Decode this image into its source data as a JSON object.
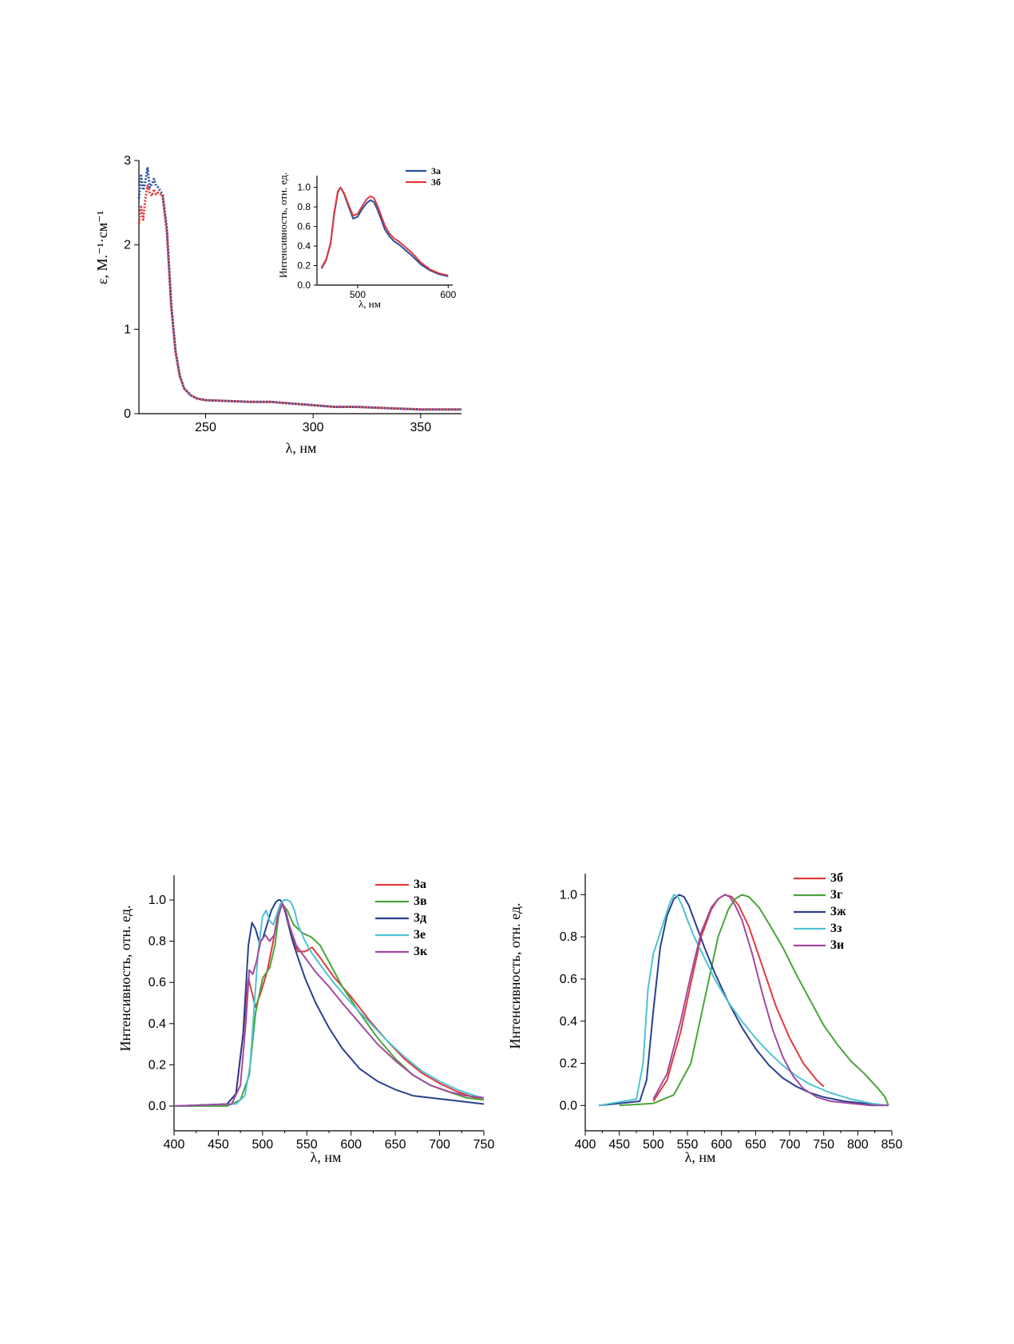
{
  "chart_data": [
    {
      "id": "absorption",
      "type": "line",
      "xlabel": "λ, нм",
      "ylabel": "ε, М.⁻¹·см⁻¹",
      "xlim": [
        219,
        369
      ],
      "ylim": [
        0,
        3
      ],
      "xticks": [
        250,
        300,
        350
      ],
      "yticks": [
        0,
        1,
        2,
        3
      ],
      "line_style": "dotted",
      "series": [
        {
          "name": "3а",
          "color": "#2b4fa0",
          "x": [
            219,
            220,
            221,
            222,
            223,
            224,
            225,
            226,
            227,
            228,
            230,
            232,
            234,
            236,
            238,
            240,
            243,
            246,
            250,
            260,
            270,
            280,
            290,
            300,
            310,
            320,
            330,
            340,
            350,
            360,
            369
          ],
          "y": [
            2.55,
            2.82,
            2.65,
            2.75,
            2.92,
            2.68,
            2.72,
            2.78,
            2.7,
            2.68,
            2.6,
            2.2,
            1.3,
            0.75,
            0.45,
            0.3,
            0.22,
            0.18,
            0.16,
            0.15,
            0.14,
            0.14,
            0.12,
            0.1,
            0.08,
            0.08,
            0.07,
            0.06,
            0.05,
            0.05,
            0.05
          ]
        },
        {
          "name": "3б",
          "color": "#e03a3e",
          "x": [
            219,
            220,
            221,
            222,
            223,
            224,
            225,
            226,
            227,
            228,
            230,
            232,
            234,
            236,
            238,
            240,
            243,
            246,
            250,
            260,
            270,
            280,
            290,
            300,
            310,
            320,
            330,
            340,
            350,
            360,
            369
          ],
          "y": [
            2.25,
            2.45,
            2.3,
            2.55,
            2.7,
            2.62,
            2.58,
            2.66,
            2.6,
            2.62,
            2.58,
            2.15,
            1.28,
            0.73,
            0.44,
            0.3,
            0.22,
            0.18,
            0.16,
            0.15,
            0.14,
            0.14,
            0.12,
            0.1,
            0.08,
            0.08,
            0.07,
            0.06,
            0.05,
            0.05,
            0.05
          ]
        }
      ]
    },
    {
      "id": "inset",
      "type": "line",
      "xlabel": "λ, нм",
      "ylabel": "Интенсивность, отн. ед.",
      "xlim": [
        455,
        605
      ],
      "ylim": [
        0,
        1.12
      ],
      "xticks": [
        500,
        600
      ],
      "yticks": [
        0.0,
        0.2,
        0.4,
        0.6,
        0.8,
        1.0
      ],
      "legend": [
        "3а",
        "3б"
      ],
      "series": [
        {
          "name": "3а",
          "color": "#2b4fa0",
          "x": [
            460,
            465,
            470,
            474,
            478,
            481,
            485,
            490,
            495,
            500,
            505,
            510,
            514,
            518,
            522,
            526,
            530,
            535,
            540,
            545,
            550,
            560,
            570,
            580,
            590,
            600
          ],
          "y": [
            0.17,
            0.25,
            0.42,
            0.72,
            0.95,
            1.0,
            0.93,
            0.8,
            0.68,
            0.7,
            0.78,
            0.84,
            0.87,
            0.85,
            0.77,
            0.67,
            0.57,
            0.5,
            0.45,
            0.42,
            0.38,
            0.3,
            0.21,
            0.15,
            0.11,
            0.09
          ]
        },
        {
          "name": "3б",
          "color": "#e03a3e",
          "x": [
            460,
            465,
            470,
            474,
            478,
            481,
            485,
            490,
            495,
            500,
            505,
            510,
            514,
            518,
            522,
            526,
            530,
            535,
            540,
            545,
            550,
            560,
            570,
            580,
            590,
            600
          ],
          "y": [
            0.18,
            0.26,
            0.43,
            0.74,
            0.96,
            1.0,
            0.94,
            0.82,
            0.71,
            0.73,
            0.81,
            0.88,
            0.91,
            0.89,
            0.81,
            0.71,
            0.61,
            0.53,
            0.48,
            0.45,
            0.41,
            0.33,
            0.23,
            0.16,
            0.12,
            0.1
          ]
        }
      ]
    },
    {
      "id": "emission-left",
      "type": "line",
      "xlabel": "λ, нм",
      "ylabel": "Интенсивность, отн. ед.",
      "xlim": [
        400,
        750
      ],
      "ylim": [
        -0.12,
        1.12
      ],
      "xticks": [
        400,
        450,
        500,
        550,
        600,
        650,
        700,
        750
      ],
      "yticks": [
        0.0,
        0.2,
        0.4,
        0.6,
        0.8,
        1.0
      ],
      "legend": [
        "3а",
        "3в",
        "3д",
        "3е",
        "3к"
      ],
      "series": [
        {
          "name": "3а",
          "color": "#e03a3e",
          "x": [
            430,
            460,
            470,
            478,
            484,
            488,
            492,
            498,
            505,
            512,
            518,
            522,
            527,
            532,
            540,
            548,
            556,
            565,
            580,
            600,
            620,
            640,
            660,
            680,
            700,
            720,
            740,
            750
          ],
          "y": [
            0.0,
            0.01,
            0.06,
            0.35,
            0.62,
            0.55,
            0.48,
            0.55,
            0.65,
            0.8,
            0.95,
            0.98,
            0.93,
            0.83,
            0.75,
            0.75,
            0.77,
            0.72,
            0.63,
            0.53,
            0.42,
            0.32,
            0.23,
            0.16,
            0.11,
            0.07,
            0.04,
            0.03
          ]
        },
        {
          "name": "3в",
          "color": "#4aa43c",
          "x": [
            400,
            460,
            475,
            485,
            492,
            500,
            508,
            514,
            518,
            522,
            528,
            535,
            545,
            555,
            565,
            575,
            590,
            610,
            630,
            650,
            670,
            690,
            710,
            730,
            750
          ],
          "y": [
            0.0,
            0.0,
            0.03,
            0.15,
            0.45,
            0.62,
            0.67,
            0.78,
            0.92,
            0.98,
            0.95,
            0.88,
            0.84,
            0.82,
            0.78,
            0.7,
            0.58,
            0.45,
            0.33,
            0.23,
            0.15,
            0.1,
            0.07,
            0.04,
            0.03
          ]
        },
        {
          "name": "3д",
          "color": "#2b3f8f",
          "x": [
            400,
            460,
            470,
            478,
            484,
            488,
            492,
            496,
            500,
            505,
            510,
            515,
            518,
            520,
            524,
            528,
            534,
            540,
            548,
            560,
            575,
            590,
            610,
            630,
            650,
            670,
            690,
            710,
            730,
            750
          ],
          "y": [
            0.0,
            0.01,
            0.06,
            0.35,
            0.78,
            0.89,
            0.86,
            0.8,
            0.81,
            0.88,
            0.95,
            0.99,
            1.0,
            1.0,
            0.97,
            0.9,
            0.8,
            0.72,
            0.62,
            0.5,
            0.38,
            0.28,
            0.18,
            0.12,
            0.08,
            0.05,
            0.04,
            0.03,
            0.02,
            0.01
          ]
        },
        {
          "name": "3е",
          "color": "#4fc3d1",
          "x": [
            400,
            470,
            480,
            486,
            490,
            495,
            500,
            504,
            508,
            512,
            516,
            520,
            524,
            528,
            532,
            536,
            540,
            548,
            556,
            566,
            580,
            600,
            620,
            640,
            660,
            680,
            700,
            720,
            740,
            750
          ],
          "y": [
            0.0,
            0.01,
            0.05,
            0.2,
            0.45,
            0.75,
            0.92,
            0.95,
            0.9,
            0.88,
            0.93,
            0.98,
            1.0,
            1.0,
            0.99,
            0.95,
            0.88,
            0.8,
            0.74,
            0.68,
            0.6,
            0.5,
            0.41,
            0.32,
            0.24,
            0.17,
            0.12,
            0.08,
            0.05,
            0.04
          ]
        },
        {
          "name": "3к",
          "color": "#a24aa0",
          "x": [
            400,
            465,
            475,
            481,
            485,
            489,
            493,
            498,
            503,
            508,
            513,
            518,
            522,
            526,
            530,
            538,
            548,
            560,
            575,
            590,
            610,
            630,
            650,
            670,
            690,
            710,
            730,
            750
          ],
          "y": [
            0.0,
            0.01,
            0.1,
            0.4,
            0.66,
            0.64,
            0.7,
            0.8,
            0.83,
            0.8,
            0.83,
            0.93,
            0.98,
            0.95,
            0.88,
            0.78,
            0.72,
            0.65,
            0.58,
            0.5,
            0.4,
            0.3,
            0.22,
            0.15,
            0.1,
            0.07,
            0.05,
            0.04
          ]
        }
      ]
    },
    {
      "id": "emission-right",
      "type": "line",
      "xlabel": "λ, нм",
      "ylabel": "Интенсивность, отн. ед.",
      "xlim": [
        400,
        850
      ],
      "ylim": [
        -0.12,
        1.1
      ],
      "xticks": [
        400,
        450,
        500,
        550,
        600,
        650,
        700,
        750,
        800,
        850
      ],
      "yticks": [
        0.0,
        0.2,
        0.4,
        0.6,
        0.8,
        1.0
      ],
      "legend": [
        "3б",
        "3г",
        "3ж",
        "3з",
        "3и"
      ],
      "series": [
        {
          "name": "3б",
          "color": "#e03a3e",
          "x": [
            500,
            520,
            540,
            555,
            570,
            585,
            595,
            605,
            615,
            625,
            640,
            660,
            680,
            700,
            720,
            740,
            750
          ],
          "y": [
            0.02,
            0.12,
            0.35,
            0.58,
            0.8,
            0.93,
            0.98,
            1.0,
            0.99,
            0.95,
            0.85,
            0.66,
            0.47,
            0.32,
            0.2,
            0.12,
            0.09
          ]
        },
        {
          "name": "3г",
          "color": "#4aa43c",
          "x": [
            450,
            500,
            530,
            555,
            575,
            595,
            610,
            620,
            630,
            640,
            655,
            670,
            690,
            710,
            730,
            750,
            770,
            790,
            810,
            830,
            840,
            845
          ],
          "y": [
            0.0,
            0.01,
            0.05,
            0.2,
            0.5,
            0.8,
            0.93,
            0.98,
            1.0,
            0.99,
            0.94,
            0.86,
            0.75,
            0.62,
            0.5,
            0.38,
            0.29,
            0.21,
            0.15,
            0.08,
            0.04,
            0.0
          ]
        },
        {
          "name": "3ж",
          "color": "#2b3f8f",
          "x": [
            420,
            480,
            490,
            500,
            510,
            520,
            530,
            538,
            545,
            552,
            560,
            575,
            590,
            610,
            630,
            650,
            670,
            690,
            710,
            730,
            750,
            780,
            810,
            845
          ],
          "y": [
            0.0,
            0.02,
            0.12,
            0.45,
            0.75,
            0.9,
            0.98,
            1.0,
            0.99,
            0.95,
            0.88,
            0.75,
            0.63,
            0.49,
            0.37,
            0.27,
            0.19,
            0.13,
            0.09,
            0.06,
            0.04,
            0.02,
            0.01,
            0.0
          ]
        },
        {
          "name": "3з",
          "color": "#4fc3d1",
          "x": [
            420,
            475,
            485,
            492,
            500,
            508,
            516,
            524,
            530,
            536,
            542,
            550,
            560,
            575,
            590,
            610,
            630,
            650,
            670,
            690,
            710,
            730,
            760,
            790,
            820,
            845
          ],
          "y": [
            0.0,
            0.03,
            0.2,
            0.55,
            0.72,
            0.8,
            0.88,
            0.96,
            1.0,
            0.99,
            0.95,
            0.88,
            0.8,
            0.7,
            0.6,
            0.49,
            0.4,
            0.32,
            0.25,
            0.19,
            0.14,
            0.1,
            0.06,
            0.03,
            0.01,
            0.0
          ]
        },
        {
          "name": "3и",
          "color": "#a24aa0",
          "x": [
            500,
            520,
            540,
            555,
            570,
            585,
            595,
            605,
            612,
            620,
            630,
            645,
            660,
            675,
            690,
            705,
            720,
            740,
            760,
            790,
            820,
            845
          ],
          "y": [
            0.03,
            0.15,
            0.4,
            0.62,
            0.82,
            0.94,
            0.98,
            1.0,
            0.99,
            0.95,
            0.88,
            0.72,
            0.53,
            0.36,
            0.23,
            0.14,
            0.08,
            0.04,
            0.02,
            0.01,
            0.0,
            0.0
          ]
        }
      ]
    }
  ]
}
